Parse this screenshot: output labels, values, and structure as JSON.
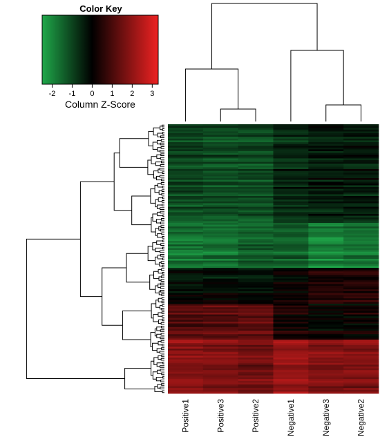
{
  "chart_data": {
    "type": "heatmap",
    "color_key": {
      "title": "Color Key",
      "label": "Column Z-Score",
      "ticks": [
        "-2",
        "-1",
        "0",
        "1",
        "2",
        "3"
      ],
      "tick_values": [
        -2,
        -1,
        0,
        1,
        2,
        3
      ],
      "range": [
        -2.5,
        3.3
      ],
      "colors": {
        "low": "#1fa84a",
        "mid": "#000000",
        "high": "#ee2222"
      }
    },
    "columns": [
      "Positive1",
      "Positive3",
      "Positive2",
      "Negative1",
      "Negative3",
      "Negative2"
    ],
    "row_dendrogram": true,
    "column_dendrogram": true,
    "row_count": 150,
    "block_profiles": [
      {
        "rows": 55,
        "values": [
          -1.0,
          -1.1,
          -1.1,
          -0.6,
          -0.4,
          -0.4
        ]
      },
      {
        "rows": 25,
        "values": [
          -1.7,
          -1.6,
          -1.4,
          -1.3,
          -1.9,
          -1.7
        ]
      },
      {
        "rows": 20,
        "values": [
          -0.3,
          -0.2,
          -0.3,
          -0.1,
          0.3,
          0.4
        ]
      },
      {
        "rows": 20,
        "values": [
          1.2,
          1.3,
          1.4,
          0.4,
          0.1,
          0.2
        ]
      },
      {
        "rows": 30,
        "values": [
          1.8,
          1.6,
          1.5,
          2.0,
          1.7,
          1.7
        ]
      }
    ]
  }
}
